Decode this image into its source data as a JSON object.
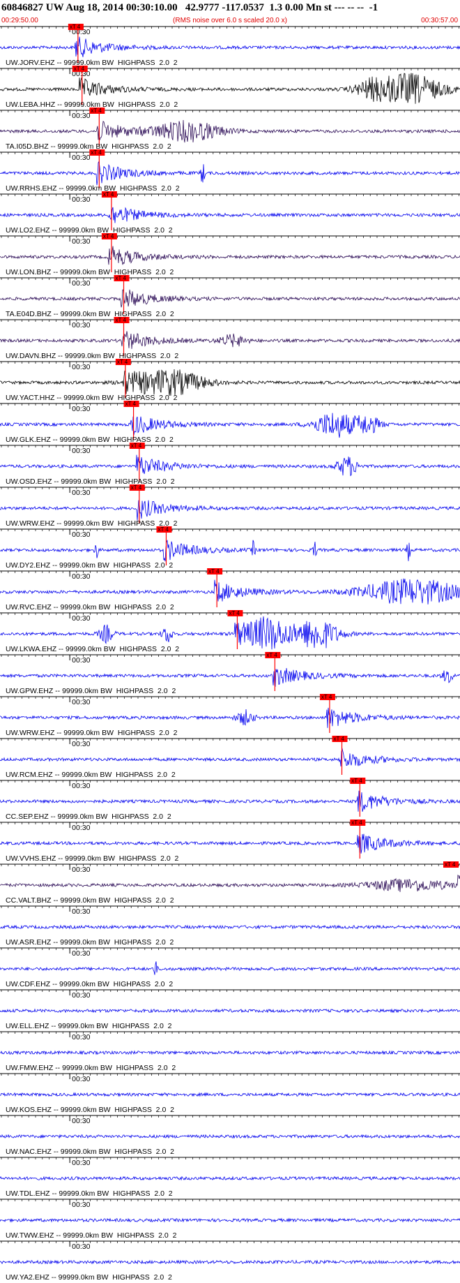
{
  "header": {
    "title": "60846827 UW Aug 18, 2014 00:30:10.00   42.9777 -117.0537  1.3 0.00 Mn st --- -- --  -1",
    "start_time": "00:29:50.00",
    "note": "(RMS noise over 6.0 s scaled 20.0 x)",
    "end_time": "00:30:57.00"
  },
  "traces": [
    {
      "label": "UW.JORV.EHZ -- 99999.0km BW  HIGHPASS  2.0  2",
      "time_mark": "00:30",
      "pick": "xT 4"
    },
    {
      "label": "UW.LEBA.HHZ -- 99999.0km BW  HIGHPASS  2.0  2",
      "time_mark": "00:30",
      "pick": "xT 4"
    },
    {
      "label": "TA.I05D.BHZ -- 99999.0km BW  HIGHPASS  2.0  2",
      "time_mark": "00:30",
      "pick": "xT 4"
    },
    {
      "label": "UW.RRHS.EHZ -- 99999.0km BW  HIGHPASS  2.0  2",
      "time_mark": "00:30",
      "pick": "xT 4"
    },
    {
      "label": "UW.LO2.EHZ -- 99999.0km BW  HIGHPASS  2.0  2",
      "time_mark": "00:30",
      "pick": "xT 4"
    },
    {
      "label": "UW.LON.BHZ -- 99999.0km BW  HIGHPASS  2.0  2",
      "time_mark": "00:30",
      "pick": "xT 4"
    },
    {
      "label": "TA.E04D.BHZ -- 99999.0km BW  HIGHPASS  2.0  2",
      "time_mark": "00:30",
      "pick": "xT 4"
    },
    {
      "label": "UW.DAVN.BHZ -- 99999.0km BW  HIGHPASS  2.0  2",
      "time_mark": "00:30",
      "pick": "xT 4"
    },
    {
      "label": "UW.YACT.HHZ -- 99999.0km BW  HIGHPASS  2.0  2",
      "time_mark": "00:30",
      "pick": "xT 4"
    },
    {
      "label": "UW.GLK.EHZ -- 99999.0km BW  HIGHPASS  2.0  2",
      "time_mark": "00:30",
      "pick": "xT 4"
    },
    {
      "label": "UW.OSD.EHZ -- 99999.0km BW  HIGHPASS  2.0  2",
      "time_mark": "00:30",
      "pick": "xT 4"
    },
    {
      "label": "UW.WRW.EHZ -- 99999.0km BW  HIGHPASS  2.0  2",
      "time_mark": "00:30",
      "pick": "xT 4"
    },
    {
      "label": "UW.DY2.EHZ -- 99999.0km BW  HIGHPASS  2.0  2",
      "time_mark": "00:30",
      "pick": "xT 4"
    },
    {
      "label": "UW.RVC.EHZ -- 99999.0km BW  HIGHPASS  2.0  2",
      "time_mark": "00:30",
      "pick": "xT 4"
    },
    {
      "label": "UW.LKWA.EHZ -- 99999.0km BW  HIGHPASS  2.0  2",
      "time_mark": "00:30",
      "pick": "xT 4"
    },
    {
      "label": "UW.GPW.EHZ -- 99999.0km BW  HIGHPASS  2.0  2",
      "time_mark": "00:30",
      "pick": "xT 4"
    },
    {
      "label": "UW.WRW.EHZ -- 99999.0km BW  HIGHPASS  2.0  2",
      "time_mark": "00:30",
      "pick": "xT 4"
    },
    {
      "label": "UW.RCM.EHZ -- 99999.0km BW  HIGHPASS  2.0  2",
      "time_mark": "00:30",
      "pick": "xT 4"
    },
    {
      "label": "CC.SEP.EHZ -- 99999.0km BW  HIGHPASS  2.0  2",
      "time_mark": "00:30",
      "pick": "xT 4"
    },
    {
      "label": "UW.VVHS.EHZ -- 99999.0km BW  HIGHPASS  2.0  2",
      "time_mark": "00:30",
      "pick": "xT 4"
    },
    {
      "label": "CC.VALT.BHZ -- 99999.0km BW  HIGHPASS  2.0  2",
      "time_mark": "00:30",
      "pick": "xT 4"
    },
    {
      "label": "UW.ASR.EHZ -- 99999.0km BW  HIGHPASS  2.0  2",
      "time_mark": "00:30"
    },
    {
      "label": "UW.CDF.EHZ -- 99999.0km BW  HIGHPASS  2.0  2",
      "time_mark": "00:30"
    },
    {
      "label": "UW.ELL.EHZ -- 99999.0km BW  HIGHPASS  2.0  2",
      "time_mark": "00:30"
    },
    {
      "label": "UW.FMW.EHZ -- 99999.0km BW  HIGHPASS  2.0  2",
      "time_mark": "00:30"
    },
    {
      "label": "UW.KOS.EHZ -- 99999.0km BW  HIGHPASS  2.0  2",
      "time_mark": "00:30"
    },
    {
      "label": "UW.NAC.EHZ -- 99999.0km BW  HIGHPASS  2.0  2",
      "time_mark": "00:30"
    },
    {
      "label": "UW.TDL.EHZ -- 99999.0km BW  HIGHPASS  2.0  2",
      "time_mark": "00:30"
    },
    {
      "label": "UW.TWW.EHZ -- 99999.0km BW  HIGHPASS  2.0  2",
      "time_mark": "00:30"
    },
    {
      "label": "UW.YA2.EHZ -- 99999.0km BW  HIGHPASS  2.0  2",
      "time_mark": "00:30"
    }
  ]
}
